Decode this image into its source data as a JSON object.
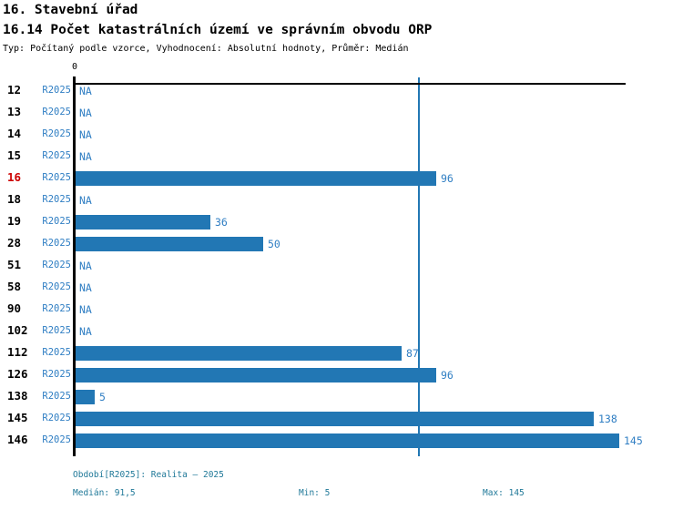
{
  "header": {
    "title_line1": "16. Stavební úřad",
    "title_line2": "16.14 Počet katastrálních území ve správním obvodu ORP",
    "subtitle": "Typ: Počítaný podle vzorce, Vyhodnocení: Absolutní hodnoty, Průměr: Medián"
  },
  "chart_data": {
    "type": "bar",
    "orientation": "horizontal",
    "title": "16.14 Počet katastrálních území ve správním obvodu ORP",
    "categories": [
      "12",
      "13",
      "14",
      "15",
      "16",
      "18",
      "19",
      "28",
      "51",
      "58",
      "90",
      "102",
      "112",
      "126",
      "138",
      "145",
      "146"
    ],
    "series": [
      {
        "name": "R2025",
        "values": [
          null,
          null,
          null,
          null,
          96,
          null,
          36,
          50,
          null,
          null,
          null,
          null,
          87,
          96,
          5,
          138,
          145
        ]
      }
    ],
    "na_label": "NA",
    "period_label": "R2025",
    "highlighted_category": "16",
    "x_zero_tick_label": "0",
    "xlim": [
      0,
      146
    ],
    "grid": false,
    "legend_position": "none",
    "median_line_value": 91.5,
    "stats": {
      "median": 91.5,
      "min": 5,
      "max": 145
    }
  },
  "footer": {
    "period_info": "Období[R2025]: Realita – 2025",
    "median": "Medián: 91,5",
    "min": "Min: 5",
    "max": "Max: 145"
  },
  "colors": {
    "bar": "#2277B4",
    "median_line": "#2277B4",
    "value_text": "#2F7EC3",
    "highlight_text": "#CC0000",
    "footer_text": "#1F7898",
    "axis": "#000000"
  }
}
